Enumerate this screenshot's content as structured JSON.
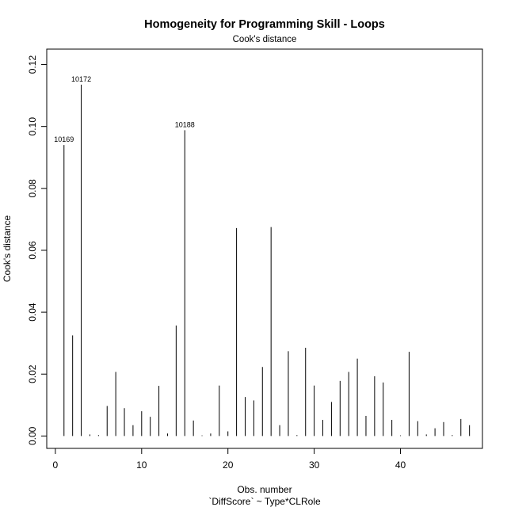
{
  "chart_data": {
    "type": "bar",
    "title": "Homogeneity for Programming Skill - Loops",
    "subtitle": "Cook's distance",
    "xlabel": "Obs. number",
    "xlabel_sub": "`DiffScore` ~ Type*CLRole",
    "ylabel": "Cook's distance",
    "xlim": [
      -1,
      49.5
    ],
    "ylim": [
      -0.004,
      0.125
    ],
    "x_ticks": [
      0,
      10,
      20,
      30,
      40
    ],
    "y_ticks": [
      0.0,
      0.02,
      0.04,
      0.06,
      0.08,
      0.1,
      0.12
    ],
    "y_tick_labels": [
      "0.00",
      "0.02",
      "0.04",
      "0.06",
      "0.08",
      "0.10",
      "0.12"
    ],
    "grid": false,
    "x": [
      1,
      2,
      3,
      4,
      5,
      6,
      7,
      8,
      9,
      10,
      11,
      12,
      13,
      14,
      15,
      16,
      17,
      18,
      19,
      20,
      21,
      22,
      23,
      24,
      25,
      26,
      27,
      28,
      29,
      30,
      31,
      32,
      33,
      34,
      35,
      36,
      37,
      38,
      39,
      40,
      41,
      42,
      43,
      44,
      45,
      46,
      47,
      48
    ],
    "values": [
      0.094,
      0.0325,
      0.1135,
      0.0005,
      0.0003,
      0.0097,
      0.0207,
      0.009,
      0.0035,
      0.008,
      0.0062,
      0.0162,
      0.0008,
      0.0357,
      0.0988,
      0.005,
      0.0002,
      0.0008,
      0.0163,
      0.0015,
      0.0672,
      0.0126,
      0.0115,
      0.0223,
      0.0675,
      0.0035,
      0.0274,
      0.0003,
      0.0285,
      0.0163,
      0.0052,
      0.011,
      0.0178,
      0.0207,
      0.025,
      0.0065,
      0.0193,
      0.0173,
      0.0052,
      0.0002,
      0.0272,
      0.0048,
      0.0005,
      0.0025,
      0.0045,
      0.0003,
      0.0055,
      0.0035
    ],
    "annotations": [
      {
        "x": 1,
        "y": 0.094,
        "label": "10169"
      },
      {
        "x": 3,
        "y": 0.1135,
        "label": "10172"
      },
      {
        "x": 15,
        "y": 0.0988,
        "label": "10188"
      }
    ]
  }
}
